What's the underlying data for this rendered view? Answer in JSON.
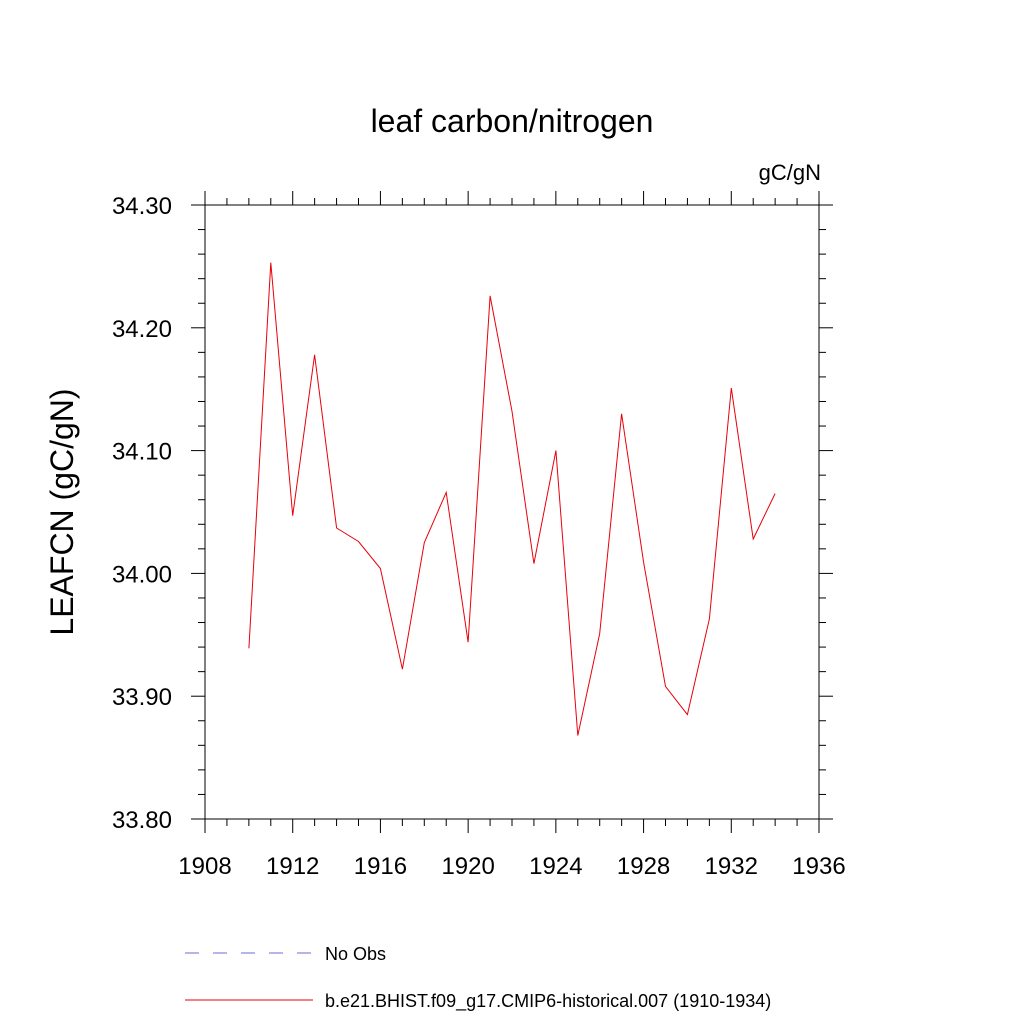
{
  "chart_data": {
    "type": "line",
    "title": "leaf carbon/nitrogen",
    "units": "gC/gN",
    "ylabel": "LEAFCN  (gC/gN)",
    "xlabel": "",
    "xlim": [
      1908,
      1936
    ],
    "ylim": [
      33.8,
      34.3
    ],
    "x_ticks": [
      "1908",
      "1912",
      "1916",
      "1920",
      "1924",
      "1928",
      "1932",
      "1936"
    ],
    "y_ticks": [
      "33.80",
      "33.90",
      "34.00",
      "34.10",
      "34.20",
      "34.30"
    ],
    "grid": false,
    "legend_position": "bottom",
    "series": [
      {
        "name": "b.e21.BHIST.f09_g17.CMIP6-historical.007 (1910-1934)",
        "color": "#e8000b",
        "style": "solid",
        "x": [
          1910,
          1911,
          1912,
          1913,
          1914,
          1915,
          1916,
          1917,
          1918,
          1919,
          1920,
          1921,
          1922,
          1923,
          1924,
          1925,
          1926,
          1927,
          1928,
          1929,
          1930,
          1931,
          1932,
          1933,
          1934
        ],
        "y": [
          33.939,
          34.253,
          34.047,
          34.178,
          34.037,
          34.026,
          34.004,
          33.922,
          34.025,
          34.066,
          33.944,
          34.226,
          34.132,
          34.008,
          34.1,
          33.868,
          33.951,
          34.13,
          34.009,
          33.908,
          33.885,
          33.963,
          34.151,
          34.028,
          34.065
        ]
      }
    ],
    "legend": [
      {
        "label": "No Obs",
        "color": "#6b6bd6",
        "style": "dashed"
      },
      {
        "label": "b.e21.BHIST.f09_g17.CMIP6-historical.007 (1910-1934)",
        "color": "#e8000b",
        "style": "solid"
      }
    ]
  }
}
